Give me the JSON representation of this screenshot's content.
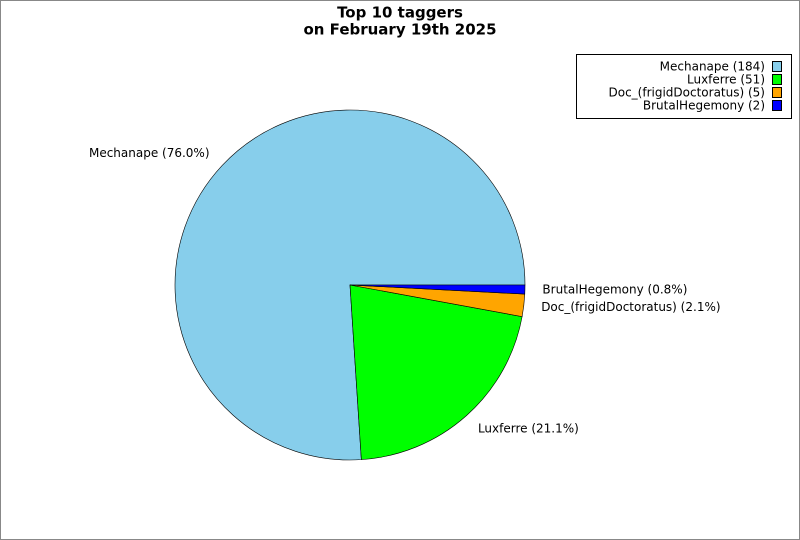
{
  "chart_data": {
    "type": "pie",
    "title": "Top 10 taggers",
    "subtitle": "on February 19th 2025",
    "categories": [
      "Mechanape",
      "Luxferre",
      "Doc_(frigidDoctoratus)",
      "BrutalHegemony"
    ],
    "values": [
      184,
      51,
      5,
      2
    ],
    "colors": [
      "#87ceeb",
      "#00ff00",
      "#ffa500",
      "#0000ff"
    ],
    "slice_labels": [
      "Mechanape (76.0%)",
      "Luxferre (21.1%)",
      "Doc_(frigidDoctoratus) (2.1%)",
      "BrutalHegemony (0.8%)"
    ],
    "legend_labels": [
      "Mechanape (184)",
      "Luxferre (51)",
      "Doc_(frigidDoctoratus) (5)",
      "BrutalHegemony (2)"
    ],
    "legend": "upper right"
  }
}
